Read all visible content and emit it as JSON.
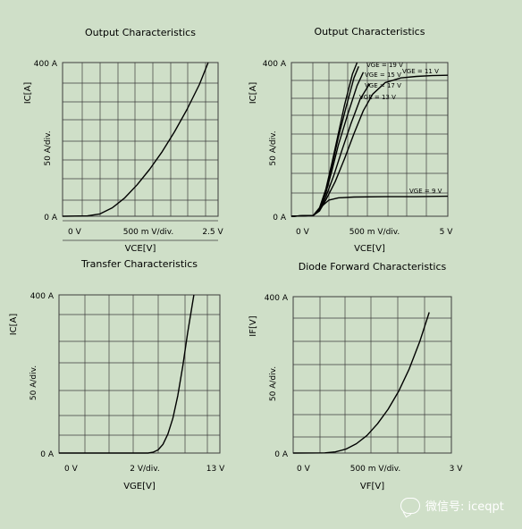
{
  "watermark": {
    "text": "微信号: iceqpt",
    "icon": "wechat-icon"
  },
  "colors": {
    "background": "#cfdfc8",
    "grid": "#3c3c3c",
    "curve": "#000000"
  },
  "chart_data": [
    {
      "type": "line",
      "title": "Output Characteristics",
      "xlabel": "VCE[V]",
      "ylabel": "IC[A]",
      "y_scale_label": "50  A/div.",
      "x_ticks": [
        "0  V",
        "500 m  V/div.",
        "2.5  V"
      ],
      "y_ticks": [
        "400  A",
        "0  A"
      ],
      "xlim": [
        0,
        2.5
      ],
      "ylim": [
        0,
        400
      ],
      "grid": true,
      "series": [
        {
          "x": [
            0,
            0.4,
            0.6,
            0.8,
            1.0,
            1.2,
            1.4,
            1.6,
            1.8,
            2.0,
            2.2,
            2.34
          ],
          "y": [
            0,
            1,
            6,
            22,
            48,
            82,
            122,
            168,
            220,
            278,
            343,
            400
          ]
        }
      ]
    },
    {
      "type": "line",
      "title": "Output Characteristics",
      "xlabel": "VCE[V]",
      "ylabel": "IC[A]",
      "y_scale_label": "50  A/div.",
      "x_ticks": [
        "0  V",
        "500 m  V/div.",
        "5  V"
      ],
      "y_ticks": [
        "400  A",
        "0  A"
      ],
      "xlim": [
        0,
        5
      ],
      "ylim": [
        0,
        400
      ],
      "grid": true,
      "series": [
        {
          "name": "VGE = 19 V",
          "x": [
            0,
            0.7,
            0.9,
            1.1,
            1.3,
            1.5,
            1.7,
            1.95,
            2.1
          ],
          "y": [
            0,
            2,
            22,
            70,
            140,
            215,
            290,
            370,
            400
          ]
        },
        {
          "name": "VGE = 15 V",
          "x": [
            0,
            0.7,
            0.9,
            1.1,
            1.3,
            1.5,
            1.75,
            2.0,
            2.15
          ],
          "y": [
            0,
            2,
            20,
            65,
            132,
            205,
            285,
            360,
            390
          ]
        },
        {
          "name": "VGE = 17 V",
          "x": [
            0,
            0.7,
            0.9,
            1.1,
            1.3,
            1.5,
            1.8,
            2.1,
            2.3
          ],
          "y": [
            0,
            2,
            18,
            60,
            120,
            185,
            265,
            340,
            375
          ]
        },
        {
          "name": "VGE = 13 V",
          "x": [
            0,
            0.7,
            0.9,
            1.1,
            1.35,
            1.6,
            1.9,
            2.2,
            2.5
          ],
          "y": [
            0,
            2,
            16,
            50,
            105,
            168,
            240,
            305,
            345
          ]
        },
        {
          "name": "VGE = 11 V",
          "x": [
            0,
            0.7,
            0.9,
            1.1,
            1.4,
            1.7,
            2.0,
            2.3,
            2.6,
            3.0,
            3.5,
            4.0,
            4.5,
            5.0
          ],
          "y": [
            0,
            2,
            14,
            42,
            90,
            150,
            215,
            275,
            318,
            348,
            360,
            364,
            366,
            367
          ]
        },
        {
          "name": "VGE = 9 V",
          "x": [
            0,
            0.7,
            0.85,
            1.0,
            1.2,
            1.5,
            2.0,
            3.0,
            4.0,
            5.0
          ],
          "y": [
            0,
            2,
            12,
            28,
            42,
            48,
            50,
            51,
            51,
            52
          ]
        }
      ]
    },
    {
      "type": "line",
      "title": "Transfer Characteristics",
      "xlabel": "VGE[V]",
      "ylabel": "IC[A]",
      "y_scale_label": "50  A/div.",
      "x_ticks": [
        "0  V",
        "2  V/div.",
        "13  V"
      ],
      "y_ticks": [
        "400  A",
        "0  A"
      ],
      "xlim": [
        0,
        13
      ],
      "ylim": [
        0,
        400
      ],
      "grid": true,
      "series": [
        {
          "x": [
            0,
            7.2,
            7.6,
            8.0,
            8.4,
            8.8,
            9.2,
            9.6,
            10.0,
            10.4,
            10.9
          ],
          "y": [
            0,
            0,
            2,
            8,
            22,
            48,
            88,
            145,
            220,
            305,
            400
          ]
        }
      ]
    },
    {
      "type": "line",
      "title": "Diode Forward Characteristics",
      "xlabel": "VF[V]",
      "ylabel": "IF[V]",
      "y_scale_label": "50  A/div.",
      "x_ticks": [
        "0  V",
        "500 m  V/div.",
        "3  V"
      ],
      "y_ticks": [
        "400  A",
        "0  A"
      ],
      "xlim": [
        0,
        3
      ],
      "ylim": [
        0,
        400
      ],
      "grid": true,
      "series": [
        {
          "x": [
            0,
            0.6,
            0.8,
            1.0,
            1.2,
            1.4,
            1.6,
            1.8,
            2.0,
            2.2,
            2.4,
            2.58
          ],
          "y": [
            0,
            0.5,
            3,
            10,
            24,
            45,
            75,
            112,
            158,
            215,
            285,
            360
          ]
        }
      ]
    }
  ]
}
